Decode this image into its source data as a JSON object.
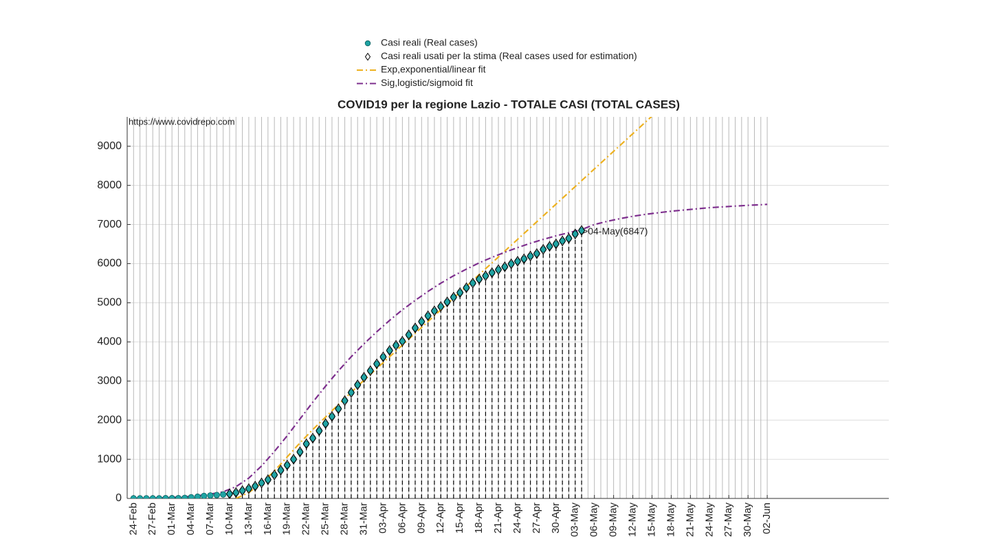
{
  "chart_data": {
    "type": "line",
    "title": "COVID19 per la regione Lazio - TOTALE CASI (TOTAL CASES)",
    "source_text": "https://www.covidrepo.com",
    "annotation": ">04-May(6847)",
    "legend": "north",
    "grid": true,
    "xlim": [
      -1,
      118
    ],
    "ylim": [
      0,
      9750
    ],
    "yticks": [
      0,
      1000,
      2000,
      3000,
      4000,
      5000,
      6000,
      7000,
      8000,
      9000
    ],
    "xticks": [
      {
        "value": 0,
        "label": "24-Feb"
      },
      {
        "value": 3,
        "label": "27-Feb"
      },
      {
        "value": 6,
        "label": "01-Mar"
      },
      {
        "value": 9,
        "label": "04-Mar"
      },
      {
        "value": 12,
        "label": "07-Mar"
      },
      {
        "value": 15,
        "label": "10-Mar"
      },
      {
        "value": 18,
        "label": "13-Mar"
      },
      {
        "value": 21,
        "label": "16-Mar"
      },
      {
        "value": 24,
        "label": "19-Mar"
      },
      {
        "value": 27,
        "label": "22-Mar"
      },
      {
        "value": 30,
        "label": "25-Mar"
      },
      {
        "value": 33,
        "label": "28-Mar"
      },
      {
        "value": 36,
        "label": "31-Mar"
      },
      {
        "value": 39,
        "label": "03-Apr"
      },
      {
        "value": 42,
        "label": "06-Apr"
      },
      {
        "value": 45,
        "label": "09-Apr"
      },
      {
        "value": 48,
        "label": "12-Apr"
      },
      {
        "value": 51,
        "label": "15-Apr"
      },
      {
        "value": 54,
        "label": "18-Apr"
      },
      {
        "value": 57,
        "label": "21-Apr"
      },
      {
        "value": 60,
        "label": "24-Apr"
      },
      {
        "value": 63,
        "label": "27-Apr"
      },
      {
        "value": 66,
        "label": "30-Apr"
      },
      {
        "value": 69,
        "label": "03-May"
      },
      {
        "value": 72,
        "label": "06-May"
      },
      {
        "value": 75,
        "label": "09-May"
      },
      {
        "value": 78,
        "label": "12-May"
      },
      {
        "value": 81,
        "label": "15-May"
      },
      {
        "value": 84,
        "label": "18-May"
      },
      {
        "value": 87,
        "label": "21-May"
      },
      {
        "value": 90,
        "label": "24-May"
      },
      {
        "value": 93,
        "label": "27-May"
      },
      {
        "value": 96,
        "label": "30-May"
      },
      {
        "value": 99,
        "label": "02-Jun"
      }
    ],
    "series": [
      {
        "name": "Casi reali (Real cases)",
        "color": "#1fa3a3",
        "marker": "circle",
        "x": [
          0,
          1,
          2,
          3,
          4,
          5,
          6,
          7,
          8,
          9,
          10,
          11,
          12,
          13,
          14,
          15,
          16,
          17,
          18,
          19,
          20,
          21,
          22,
          23,
          24,
          25,
          26,
          27,
          28,
          29,
          30,
          31,
          32,
          33,
          34,
          35,
          36,
          37,
          38,
          39,
          40,
          41,
          42,
          43,
          44,
          45,
          46,
          47,
          48,
          49,
          50,
          51,
          52,
          53,
          54,
          55,
          56,
          57,
          58,
          59,
          60,
          61,
          62,
          63,
          64,
          65,
          66,
          67,
          68,
          69,
          70
        ],
        "values": [
          3,
          3,
          3,
          3,
          3,
          6,
          6,
          6,
          14,
          30,
          44,
          64,
          76,
          86,
          102,
          116,
          150,
          200,
          250,
          314,
          396,
          479,
          601,
          721,
          852,
          1002,
          1189,
          1396,
          1540,
          1728,
          1911,
          2095,
          2290,
          2498,
          2706,
          2902,
          3095,
          3264,
          3439,
          3616,
          3781,
          3912,
          4017,
          4180,
          4356,
          4519,
          4667,
          4792,
          4903,
          5021,
          5142,
          5259,
          5384,
          5503,
          5604,
          5688,
          5768,
          5846,
          5919,
          5994,
          6060,
          6122,
          6193,
          6256,
          6363,
          6441,
          6504,
          6581,
          6645,
          6758,
          6847
        ]
      },
      {
        "name": "Casi reali usati per la stima (Real cases used for estimation)",
        "color": "#000000",
        "marker": "diamond",
        "stems": true,
        "x": [
          15,
          16,
          17,
          18,
          19,
          20,
          21,
          22,
          23,
          24,
          25,
          26,
          27,
          28,
          29,
          30,
          31,
          32,
          33,
          34,
          35,
          36,
          37,
          38,
          39,
          40,
          41,
          42,
          43,
          44,
          45,
          46,
          47,
          48,
          49,
          50,
          51,
          52,
          53,
          54,
          55,
          56,
          57,
          58,
          59,
          60,
          61,
          62,
          63,
          64,
          65,
          66,
          67,
          68,
          69,
          70
        ],
        "values": [
          116,
          150,
          200,
          250,
          314,
          396,
          479,
          601,
          721,
          852,
          1002,
          1189,
          1396,
          1540,
          1728,
          1911,
          2095,
          2290,
          2498,
          2706,
          2902,
          3095,
          3264,
          3439,
          3616,
          3781,
          3912,
          4017,
          4180,
          4356,
          4519,
          4667,
          4792,
          4903,
          5021,
          5142,
          5259,
          5384,
          5503,
          5604,
          5688,
          5768,
          5846,
          5919,
          5994,
          6060,
          6122,
          6193,
          6256,
          6363,
          6441,
          6504,
          6581,
          6645,
          6758,
          6847
        ]
      },
      {
        "name": "Exp,exponential/linear fit",
        "color": "#EDB120",
        "line": "dashdot",
        "x": [
          16,
          18,
          20,
          22,
          24,
          26,
          28,
          30,
          32,
          34,
          36,
          38,
          40,
          42,
          44,
          46,
          48,
          50,
          52,
          54,
          56,
          58,
          60,
          62,
          64,
          66,
          68,
          70,
          72,
          74,
          76,
          78,
          80,
          82
        ],
        "values": [
          0,
          150,
          390,
          700,
          1060,
          1420,
          1760,
          2080,
          2400,
          2710,
          3020,
          3320,
          3620,
          3920,
          4220,
          4520,
          4820,
          5120,
          5420,
          5720,
          6020,
          6320,
          6620,
          6920,
          7220,
          7520,
          7820,
          8120,
          8420,
          8720,
          9020,
          9320,
          9620,
          9920
        ]
      },
      {
        "name": "Sig,logistic/sigmoid fit",
        "color": "#7E2F8E",
        "line": "dashdot",
        "x": [
          0,
          2,
          4,
          6,
          8,
          10,
          12,
          14,
          16,
          18,
          20,
          22,
          24,
          26,
          28,
          30,
          32,
          34,
          36,
          38,
          40,
          42,
          44,
          46,
          48,
          50,
          52,
          54,
          56,
          58,
          60,
          62,
          64,
          66,
          68,
          70,
          72,
          74,
          76,
          78,
          80,
          82,
          84,
          86,
          88,
          90,
          92,
          94,
          96,
          98,
          99
        ],
        "values": [
          0,
          5,
          10,
          25,
          40,
          70,
          110,
          170,
          300,
          520,
          830,
          1200,
          1600,
          2030,
          2460,
          2870,
          3260,
          3620,
          3950,
          4260,
          4550,
          4820,
          5060,
          5290,
          5500,
          5690,
          5860,
          6020,
          6160,
          6290,
          6410,
          6520,
          6620,
          6710,
          6790,
          6870,
          7000,
          7080,
          7150,
          7210,
          7260,
          7300,
          7340,
          7370,
          7400,
          7430,
          7450,
          7470,
          7490,
          7505,
          7515
        ]
      }
    ]
  }
}
